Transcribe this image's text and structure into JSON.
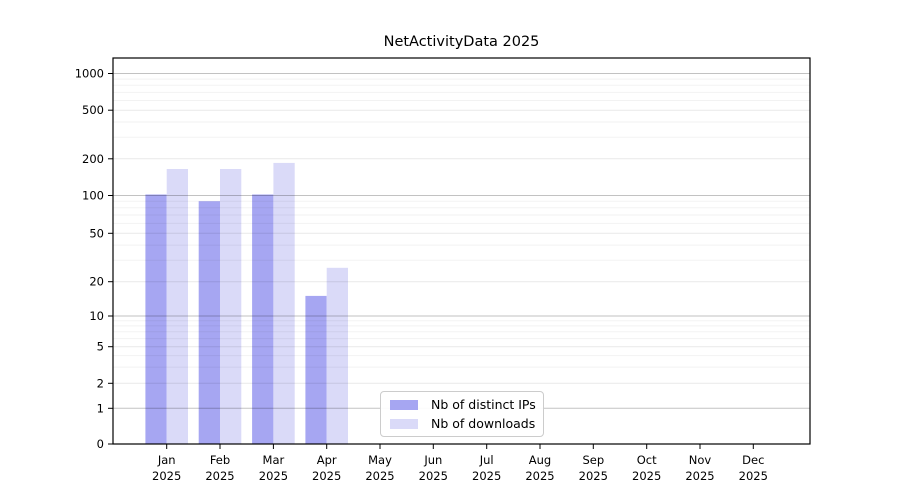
{
  "chart_data": {
    "type": "bar",
    "title": "NetActivityData 2025",
    "categories": [
      "Jan 2025",
      "Feb 2025",
      "Mar 2025",
      "Apr 2025",
      "May 2025",
      "Jun 2025",
      "Jul 2025",
      "Aug 2025",
      "Sep 2025",
      "Oct 2025",
      "Nov 2025",
      "Dec 2025"
    ],
    "series": [
      {
        "name": "Nb of distinct IPs",
        "color": "#a6a6f2",
        "values": [
          102,
          90,
          102,
          15,
          0,
          0,
          0,
          0,
          0,
          0,
          0,
          0
        ]
      },
      {
        "name": "Nb of downloads",
        "color": "#dadaf8",
        "values": [
          165,
          165,
          185,
          26,
          0,
          0,
          0,
          0,
          0,
          0,
          0,
          0
        ]
      }
    ],
    "yaxis": {
      "scale": "symlog",
      "ticks": [
        0,
        1,
        2,
        5,
        10,
        20,
        50,
        100,
        200,
        500,
        1000
      ],
      "range": [
        0,
        1000
      ]
    },
    "xlabel": "",
    "ylabel": "",
    "grid": true,
    "legend": {
      "position": "lower-center",
      "entries": [
        "Nb of distinct IPs",
        "Nb of downloads"
      ]
    }
  }
}
